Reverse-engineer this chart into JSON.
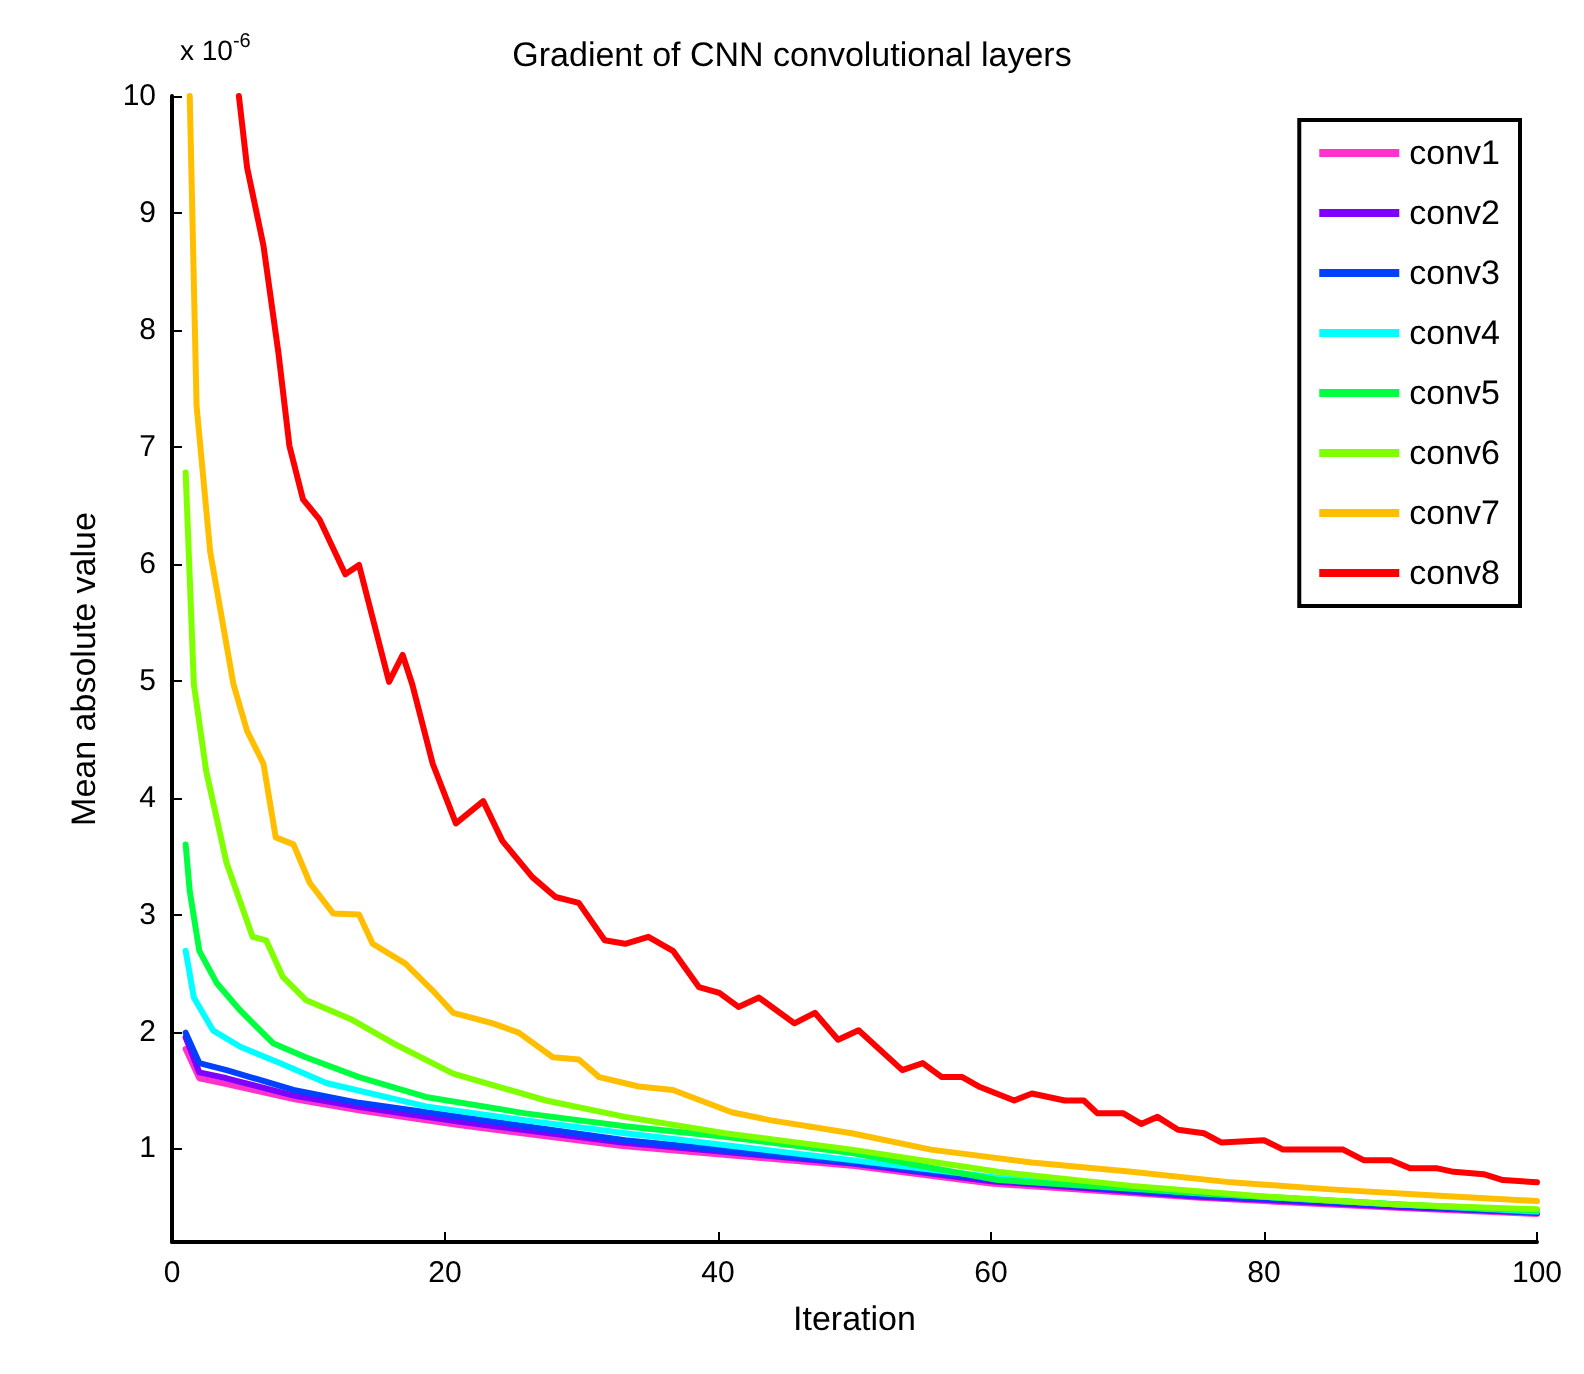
{
  "chart_data": {
    "type": "line",
    "title": "Gradient of CNN convolutional layers",
    "xlabel": "Iteration",
    "ylabel": "Mean absolute value",
    "annotations": [
      "x 10$^{-6}$"
    ],
    "xlim": [
      0,
      100
    ],
    "xticks": [
      0,
      20,
      40,
      60,
      80,
      100
    ],
    "ylim": [
      0.2,
      10
    ],
    "yticks": [
      1,
      2,
      3,
      4,
      5,
      6,
      7,
      8,
      9,
      10
    ],
    "grid": false,
    "legend": "top right",
    "marker": "none",
    "line_style": "solid",
    "series": [
      {
        "name": "conv1",
        "color": "#ff33cc",
        "x": [
          1,
          2,
          4,
          9,
          14,
          21,
          33,
          50,
          60,
          75,
          90,
          100
        ],
        "values": [
          1.85,
          1.6,
          1.55,
          1.42,
          1.32,
          1.2,
          1.02,
          0.85,
          0.7,
          0.58,
          0.49,
          0.44
        ]
      },
      {
        "name": "conv2",
        "color": "#8000ff",
        "x": [
          1,
          2,
          4,
          9,
          14,
          21,
          33,
          50,
          60,
          75,
          90,
          100
        ],
        "values": [
          1.95,
          1.65,
          1.6,
          1.45,
          1.35,
          1.23,
          1.05,
          0.87,
          0.72,
          0.59,
          0.5,
          0.45
        ]
      },
      {
        "name": "conv3",
        "color": "#0040ff",
        "x": [
          1,
          2,
          4,
          8.9,
          13.7,
          21.1,
          33.2,
          49.8,
          60.5,
          75,
          90,
          100
        ],
        "values": [
          1.99,
          1.73,
          1.67,
          1.5,
          1.39,
          1.27,
          1.07,
          0.88,
          0.73,
          0.6,
          0.51,
          0.45
        ]
      },
      {
        "name": "conv4",
        "color": "#00ffff",
        "x": [
          1,
          1.6,
          3,
          5,
          7.9,
          11.3,
          18.6,
          25.9,
          33.2,
          49.8,
          60.5,
          75,
          90,
          100
        ],
        "values": [
          2.69,
          2.29,
          2.01,
          1.87,
          1.73,
          1.56,
          1.36,
          1.24,
          1.13,
          0.9,
          0.75,
          0.62,
          0.52,
          0.46
        ]
      },
      {
        "name": "conv5",
        "color": "#00ff40",
        "x": [
          1,
          1.3,
          2,
          3.3,
          5,
          7.4,
          9.8,
          13.7,
          18.6,
          25.9,
          33.2,
          40.5,
          49.8,
          60.5,
          75.1,
          89.8,
          100
        ],
        "values": [
          3.6,
          3.2,
          2.69,
          2.41,
          2.18,
          1.9,
          1.78,
          1.61,
          1.44,
          1.3,
          1.19,
          1.1,
          0.96,
          0.73,
          0.62,
          0.52,
          0.47
        ]
      },
      {
        "name": "conv6",
        "color": "#80ff00",
        "x": [
          1,
          1.6,
          2.5,
          4,
          5.9,
          6.9,
          8.1,
          9.8,
          13.2,
          16.2,
          20.6,
          27.4,
          33.2,
          40.5,
          49.8,
          60.5,
          70.3,
          80,
          89.8,
          100
        ],
        "values": [
          6.78,
          4.97,
          4.23,
          3.44,
          2.81,
          2.78,
          2.47,
          2.27,
          2.1,
          1.9,
          1.64,
          1.41,
          1.27,
          1.13,
          0.99,
          0.8,
          0.68,
          0.59,
          0.52,
          0.48
        ]
      },
      {
        "name": "conv7",
        "color": "#ffbf00",
        "x": [
          1.3,
          1.8,
          2.8,
          4.5,
          5.5,
          6.7,
          7.6,
          8.9,
          10.1,
          11.8,
          13.7,
          14.7,
          17.1,
          19.1,
          20.6,
          23.5,
          25.4,
          27.9,
          29.8,
          31.3,
          34.2,
          36.7,
          41,
          43.9,
          49.8,
          55.6,
          63,
          70.3,
          77.6,
          84.9,
          92.2,
          100
        ],
        "values": [
          10,
          7.35,
          6.1,
          4.97,
          4.57,
          4.29,
          3.66,
          3.6,
          3.27,
          3.01,
          3,
          2.75,
          2.58,
          2.35,
          2.16,
          2.07,
          1.99,
          1.78,
          1.76,
          1.61,
          1.53,
          1.5,
          1.31,
          1.24,
          1.13,
          0.99,
          0.88,
          0.8,
          0.71,
          0.65,
          0.6,
          0.55
        ]
      },
      {
        "name": "conv8",
        "color": "#ff0000",
        "x": [
          4.9,
          5.5,
          6.7,
          7.8,
          8.6,
          9.6,
          10.8,
          12.7,
          13.7,
          15.9,
          16.9,
          17.6,
          19.1,
          20.8,
          22.8,
          24.2,
          26.4,
          28.1,
          29.8,
          31.7,
          33.2,
          34.9,
          36.7,
          38.6,
          40.1,
          41.5,
          43,
          45.6,
          47.1,
          48.8,
          50.3,
          53.5,
          55,
          56.4,
          57.9,
          59.1,
          61.7,
          63,
          65.4,
          66.8,
          67.8,
          69.7,
          71,
          72.2,
          73.7,
          75.6,
          76.9,
          80,
          81.4,
          85.8,
          87.3,
          89.3,
          90.7,
          92.7,
          93.9,
          96.1,
          97.5,
          100
        ],
        "values": [
          10,
          9.39,
          8.72,
          7.8,
          7.01,
          6.55,
          6.38,
          5.91,
          5.99,
          4.99,
          5.22,
          4.97,
          4.29,
          3.78,
          3.97,
          3.63,
          3.32,
          3.15,
          3.1,
          2.78,
          2.75,
          2.81,
          2.69,
          2.38,
          2.33,
          2.21,
          2.29,
          2.07,
          2.16,
          1.93,
          2.01,
          1.67,
          1.73,
          1.61,
          1.61,
          1.53,
          1.41,
          1.47,
          1.41,
          1.41,
          1.3,
          1.3,
          1.21,
          1.27,
          1.16,
          1.13,
          1.05,
          1.07,
          0.99,
          0.99,
          0.9,
          0.9,
          0.83,
          0.83,
          0.8,
          0.78,
          0.73,
          0.71
        ]
      }
    ]
  }
}
